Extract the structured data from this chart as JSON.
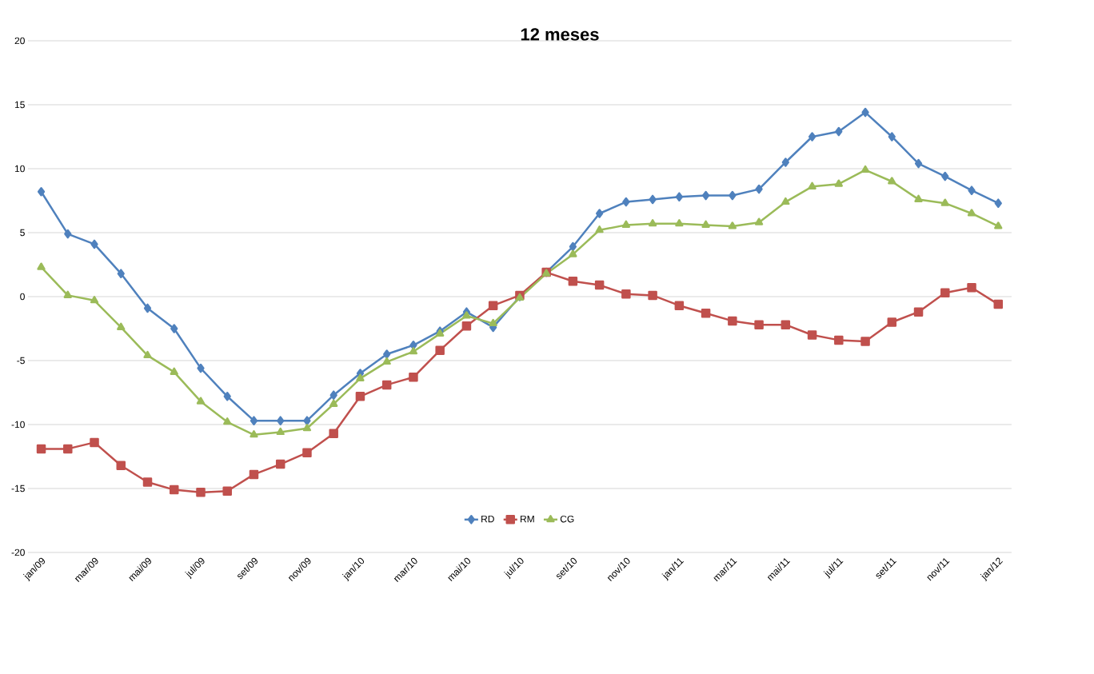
{
  "chart_data": {
    "type": "line",
    "title": "12 meses",
    "categories": [
      "jan/09",
      null,
      "mar/09",
      null,
      "mai/09",
      null,
      "jul/09",
      null,
      "set/09",
      null,
      "nov/09",
      null,
      "jan/10",
      null,
      "mar/10",
      null,
      "mai/10",
      null,
      "jul/10",
      null,
      "set/10",
      null,
      "nov/10",
      null,
      "jan/11",
      null,
      "mar/11",
      null,
      "mai/11",
      null,
      "jul/11",
      null,
      "set/11",
      null,
      "nov/11",
      null,
      "jan/12"
    ],
    "series": [
      {
        "name": "RD",
        "color": "#4f81bd",
        "marker": "diamond",
        "values": [
          8.2,
          4.9,
          4.1,
          1.8,
          -0.9,
          -2.5,
          -5.6,
          -7.8,
          -9.7,
          -9.7,
          -9.7,
          -7.7,
          -6.0,
          -4.5,
          -3.8,
          -2.7,
          -1.2,
          -2.4,
          0.0,
          1.9,
          3.9,
          6.5,
          7.4,
          7.6,
          7.8,
          7.9,
          7.9,
          8.4,
          10.5,
          12.5,
          12.9,
          14.4,
          12.5,
          10.4,
          9.4,
          8.3,
          7.3
        ]
      },
      {
        "name": "RM",
        "color": "#c0504d",
        "marker": "square",
        "values": [
          -11.9,
          -11.9,
          -11.4,
          -13.2,
          -14.5,
          -15.1,
          -15.3,
          -15.2,
          -13.9,
          -13.1,
          -12.2,
          -10.7,
          -7.8,
          -6.9,
          -6.3,
          -4.2,
          -2.3,
          -0.7,
          0.1,
          1.9,
          1.2,
          0.9,
          0.2,
          0.1,
          -0.7,
          -1.3,
          -1.9,
          -2.2,
          -2.2,
          -3.0,
          -3.4,
          -3.5,
          -2.0,
          -1.2,
          0.3,
          0.7,
          -0.6
        ]
      },
      {
        "name": "CG",
        "color": "#9bbb59",
        "marker": "triangle",
        "values": [
          2.3,
          0.1,
          -0.3,
          -2.4,
          -4.6,
          -5.9,
          -8.2,
          -9.8,
          -10.8,
          -10.6,
          -10.3,
          -8.4,
          -6.4,
          -5.1,
          -4.3,
          -2.9,
          -1.5,
          -2.1,
          -0.1,
          1.8,
          3.3,
          5.2,
          5.6,
          5.7,
          5.7,
          5.6,
          5.5,
          5.8,
          7.4,
          8.6,
          8.8,
          9.9,
          9.0,
          7.6,
          7.3,
          6.5,
          5.5
        ]
      }
    ],
    "ylim": [
      -20,
      20
    ],
    "yticks": [
      -20,
      -15,
      -10,
      -5,
      0,
      5,
      10,
      15,
      20
    ],
    "grid": "y",
    "legend": "bottom",
    "line_style": "solid"
  }
}
